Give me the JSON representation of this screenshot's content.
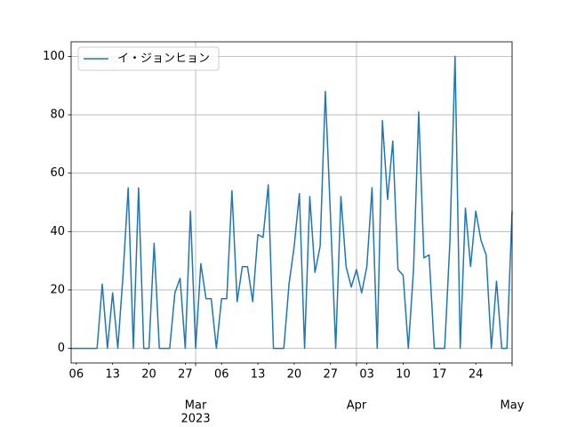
{
  "chart_data": {
    "type": "line",
    "x": [
      "2023-02-05",
      "2023-02-06",
      "2023-02-07",
      "2023-02-08",
      "2023-02-09",
      "2023-02-10",
      "2023-02-11",
      "2023-02-12",
      "2023-02-13",
      "2023-02-14",
      "2023-02-15",
      "2023-02-16",
      "2023-02-17",
      "2023-02-18",
      "2023-02-19",
      "2023-02-20",
      "2023-02-21",
      "2023-02-22",
      "2023-02-23",
      "2023-02-24",
      "2023-02-25",
      "2023-02-26",
      "2023-02-27",
      "2023-02-28",
      "2023-03-01",
      "2023-03-02",
      "2023-03-03",
      "2023-03-04",
      "2023-03-05",
      "2023-03-06",
      "2023-03-07",
      "2023-03-08",
      "2023-03-09",
      "2023-03-10",
      "2023-03-11",
      "2023-03-12",
      "2023-03-13",
      "2023-03-14",
      "2023-03-15",
      "2023-03-16",
      "2023-03-17",
      "2023-03-18",
      "2023-03-19",
      "2023-03-20",
      "2023-03-21",
      "2023-03-22",
      "2023-03-23",
      "2023-03-24",
      "2023-03-25",
      "2023-03-26",
      "2023-03-27",
      "2023-03-28",
      "2023-03-29",
      "2023-03-30",
      "2023-03-31",
      "2023-04-01",
      "2023-04-02",
      "2023-04-03",
      "2023-04-04",
      "2023-04-05",
      "2023-04-06",
      "2023-04-07",
      "2023-04-08",
      "2023-04-09",
      "2023-04-10",
      "2023-04-11",
      "2023-04-12",
      "2023-04-13",
      "2023-04-14",
      "2023-04-15",
      "2023-04-16",
      "2023-04-17",
      "2023-04-18",
      "2023-04-19",
      "2023-04-20",
      "2023-04-21",
      "2023-04-22",
      "2023-04-23",
      "2023-04-24",
      "2023-04-25",
      "2023-04-26",
      "2023-04-27",
      "2023-04-28",
      "2023-04-29",
      "2023-04-30",
      "2023-05-01"
    ],
    "series": [
      {
        "name": "イ・ジョンヒョン",
        "color": "#1f77b4",
        "values": [
          0,
          0,
          0,
          0,
          0,
          0,
          22,
          0,
          19,
          0,
          25,
          55,
          0,
          55,
          0,
          0,
          36,
          0,
          0,
          0,
          19,
          24,
          0,
          47,
          0,
          29,
          17,
          17,
          0,
          17,
          17,
          54,
          16,
          28,
          28,
          16,
          39,
          38,
          56,
          0,
          0,
          0,
          22,
          35,
          53,
          0,
          52,
          26,
          35,
          88,
          45,
          0,
          52,
          28,
          21,
          27,
          19,
          28,
          55,
          0,
          78,
          51,
          71,
          27,
          25,
          0,
          27,
          81,
          31,
          32,
          0,
          0,
          0,
          36,
          100,
          0,
          48,
          28,
          47,
          37,
          32,
          0,
          23,
          0,
          0,
          47
        ]
      }
    ],
    "xlim": [
      "2023-02-05",
      "2023-05-01"
    ],
    "xticks": [
      {
        "value": "2023-02-06",
        "label": "06"
      },
      {
        "value": "2023-02-13",
        "label": "13"
      },
      {
        "value": "2023-02-20",
        "label": "20"
      },
      {
        "value": "2023-02-27",
        "label": "27"
      },
      {
        "value": "2023-03-01",
        "label": "Mar"
      },
      {
        "value": "2023-03-06",
        "label": "06"
      },
      {
        "value": "2023-03-13",
        "label": "13"
      },
      {
        "value": "2023-03-20",
        "label": "20"
      },
      {
        "value": "2023-03-27",
        "label": "27"
      },
      {
        "value": "2023-04-01",
        "label": "Apr"
      },
      {
        "value": "2023-04-03",
        "label": "03"
      },
      {
        "value": "2023-04-10",
        "label": "10"
      },
      {
        "value": "2023-04-17",
        "label": "17"
      },
      {
        "value": "2023-04-24",
        "label": "24"
      },
      {
        "value": "2023-05-01",
        "label": "May"
      }
    ],
    "x_offset_label": "2023",
    "ylim": [
      -5,
      105
    ],
    "yticks": [
      0,
      20,
      40,
      60,
      80,
      100
    ],
    "grid": true,
    "legend": "upper left"
  }
}
